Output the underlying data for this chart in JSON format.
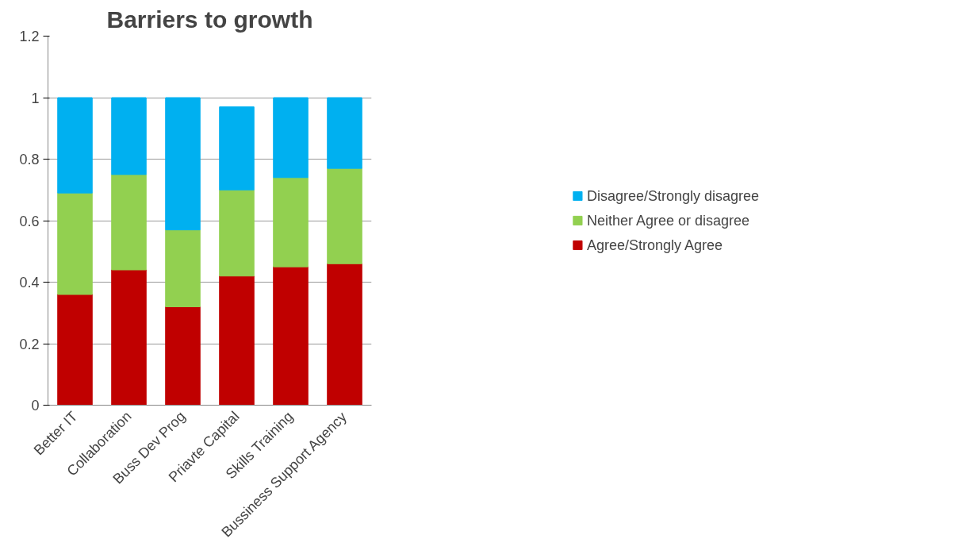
{
  "chart_data": {
    "type": "bar",
    "title": "Barriers to growth",
    "stacked": true,
    "categories": [
      "Better IT",
      "Collaboration",
      "Buss Dev Prog",
      "Priavte Capital",
      "Skills Training",
      "Bussiness Support Agency"
    ],
    "series": [
      {
        "name": "Agree/Strongly Agree",
        "color": "#c00000",
        "values": [
          0.36,
          0.44,
          0.32,
          0.42,
          0.45,
          0.46
        ]
      },
      {
        "name": "Neither Agree or disagree",
        "color": "#92d050",
        "values": [
          0.33,
          0.31,
          0.25,
          0.28,
          0.29,
          0.31
        ]
      },
      {
        "name": "Disagree/Strongly disagree",
        "color": "#00b0f0",
        "values": [
          0.31,
          0.25,
          0.43,
          0.27,
          0.26,
          0.23
        ]
      }
    ],
    "ylim": [
      0,
      1.2
    ],
    "yticks": [
      0,
      0.2,
      0.4,
      0.6,
      0.8,
      1,
      1.2
    ],
    "grid": "y",
    "legend": "right"
  }
}
